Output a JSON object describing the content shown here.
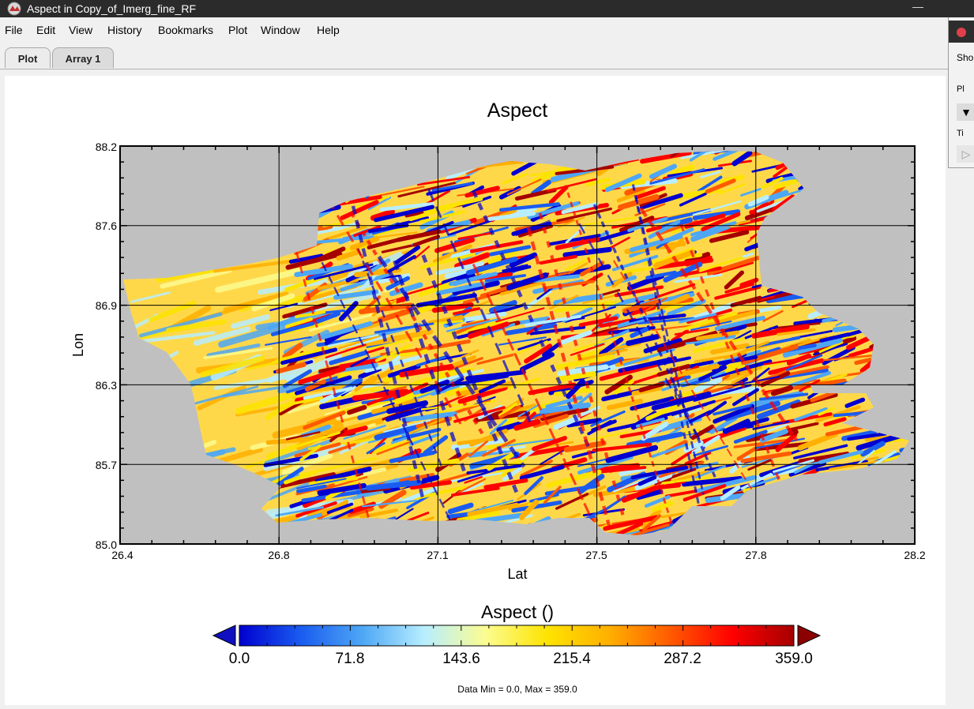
{
  "window": {
    "title": "Aspect in Copy_of_Imerg_fine_RF",
    "minimize_glyph": "—"
  },
  "menu": [
    "File",
    "Edit",
    "View",
    "History",
    "Bookmarks",
    "Plot",
    "Window",
    "Help"
  ],
  "tabs": [
    {
      "label": "Plot",
      "active": true
    },
    {
      "label": "Array 1",
      "active": false
    }
  ],
  "side_panel": {
    "texts": [
      "Sho",
      "Pl",
      "Ti"
    ],
    "buttons": [
      "▼",
      "▷"
    ],
    "dot_color": "#e0404a"
  },
  "plot": {
    "title": "Aspect",
    "x_label": "Lat",
    "y_label": "Lon",
    "x_ticks": [
      "26.4",
      "26.8",
      "27.1",
      "27.5",
      "27.8",
      "28.2"
    ],
    "y_ticks": [
      "88.2",
      "87.6",
      "86.9",
      "86.3",
      "85.7",
      "85.0"
    ],
    "x_range": [
      26.4,
      28.2
    ],
    "y_range": [
      85.0,
      88.2
    ],
    "background_color": "#c0c0c0",
    "grid": true
  },
  "colorbar": {
    "title": "Aspect ()",
    "tick_labels": [
      "0.0",
      "71.8",
      "143.6",
      "215.4",
      "287.2",
      "359.0"
    ],
    "min": 0.0,
    "max": 359.0,
    "colormap": [
      "#0000d0",
      "#1a5cf0",
      "#4ea7f5",
      "#b8eeff",
      "#fcfc90",
      "#fde300",
      "#ffb000",
      "#ff5a00",
      "#ff0000",
      "#a50000"
    ],
    "under_color": "#1010c0",
    "over_color": "#8b0000"
  },
  "stats": {
    "text": "Data Min = 0.0, Max = 359.0"
  }
}
